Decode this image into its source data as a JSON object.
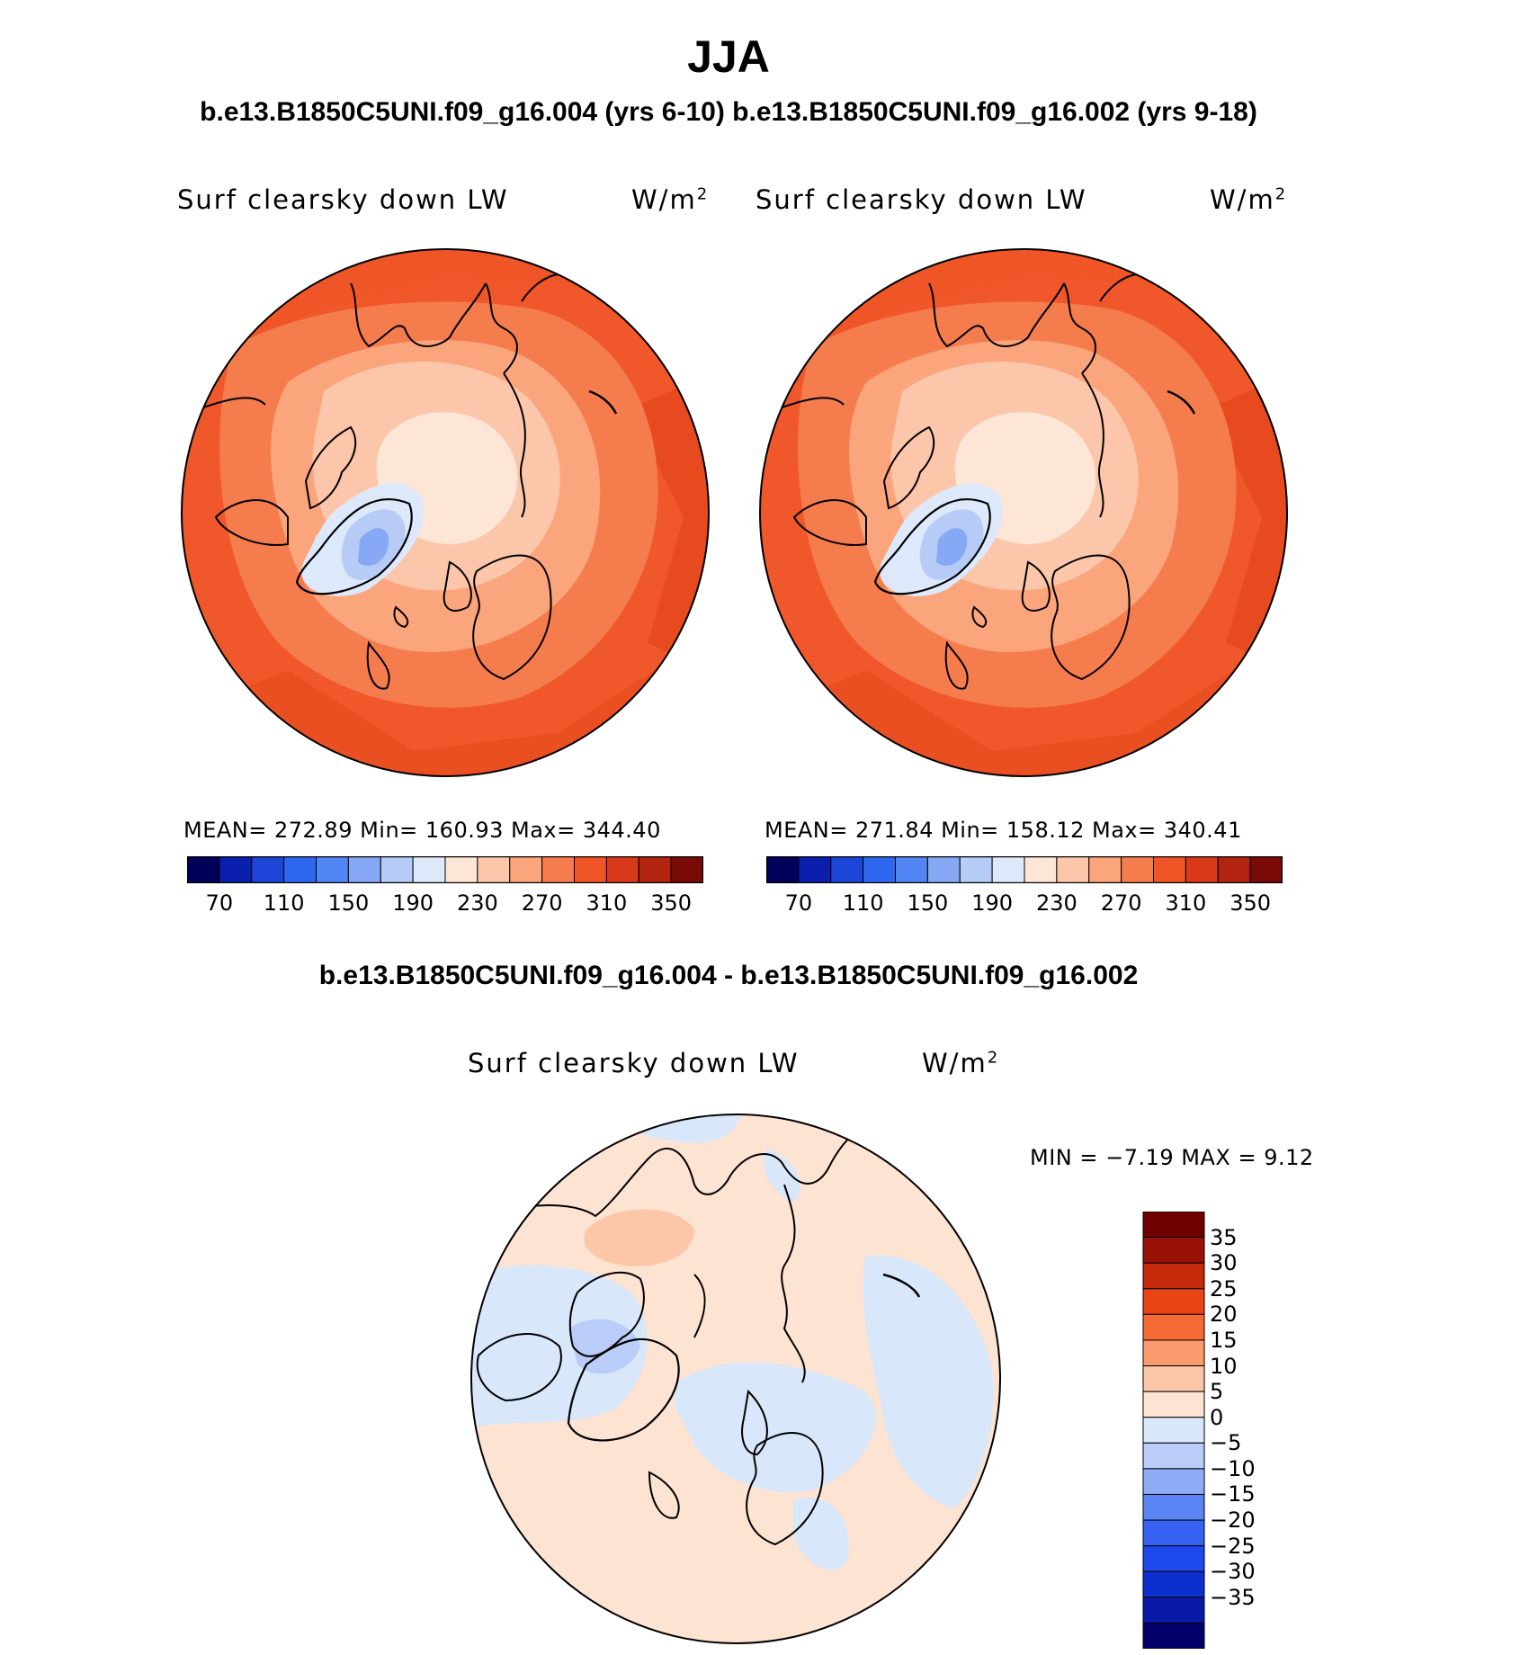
{
  "title": "JJA",
  "subtitle": "b.e13.B1850C5UNI.f09_g16.004 (yrs 6-10) b.e13.B1850C5UNI.f09_g16.002 (yrs 9-18)",
  "diff_title": "b.e13.B1850C5UNI.f09_g16.004 - b.e13.B1850C5UNI.f09_g16.002",
  "colors": {
    "abs_scale": [
      "#00005a",
      "#0a1fae",
      "#1d46d9",
      "#2e68f0",
      "#5286f4",
      "#86a8f5",
      "#b6ccf7",
      "#dde9fb",
      "#fde6d6",
      "#fcc6aa",
      "#fba57c",
      "#f57c4d",
      "#ef5526",
      "#d8391a",
      "#b32510",
      "#7a0a06"
    ],
    "diff_scale": [
      "#02026a",
      "#0a1aa8",
      "#0d2fd0",
      "#1c48ec",
      "#3763f2",
      "#5b84f4",
      "#8eabf6",
      "#b9cdf8",
      "#d9e7fb",
      "#fde3d1",
      "#fcc6a8",
      "#f99b6d",
      "#f66b35",
      "#e84416",
      "#c52a0b",
      "#9a1205",
      "#6e0000"
    ]
  },
  "panel_left": {
    "label": "Surf clearsky down LW",
    "units_base": "W/m",
    "units_sup": "2",
    "stats": "MEAN= 272.89   Min= 160.93   Max= 344.40",
    "tick_labels": [
      "70",
      "110",
      "150",
      "190",
      "230",
      "270",
      "310",
      "350"
    ]
  },
  "panel_right": {
    "label": "Surf clearsky down LW",
    "units_base": "W/m",
    "units_sup": "2",
    "stats": "MEAN= 271.84   Min= 158.12   Max= 340.41",
    "tick_labels": [
      "70",
      "110",
      "150",
      "190",
      "230",
      "270",
      "310",
      "350"
    ]
  },
  "panel_diff": {
    "label": "Surf clearsky down LW",
    "units_base": "W/m",
    "units_sup": "2",
    "stats": "MIN =   −7.19 MAX =     9.12",
    "tick_labels": [
      "35",
      "30",
      "25",
      "20",
      "15",
      "10",
      "5",
      "0",
      "−5",
      "−10",
      "−15",
      "−20",
      "−25",
      "−30",
      "−35"
    ]
  }
}
